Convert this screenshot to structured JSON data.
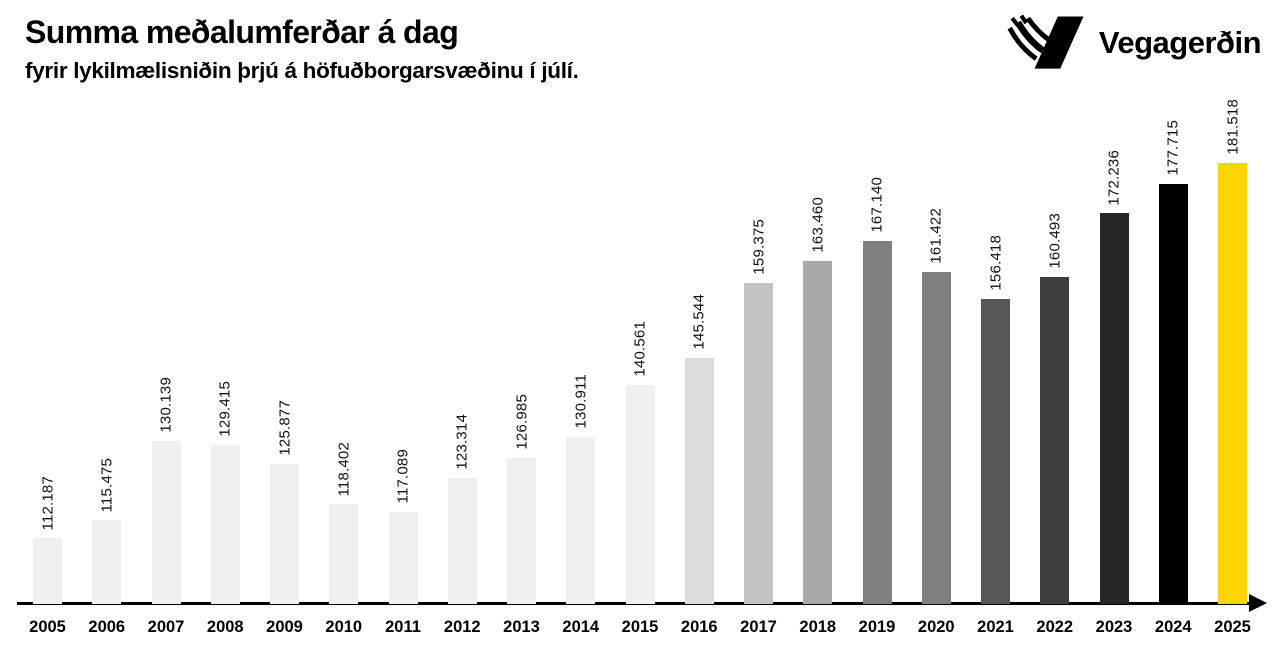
{
  "header": {
    "title": "Summa meðalumferðar á dag",
    "subtitle": "fyrir lykilmælisniðin þrjú á höfuðborgarsvæðinu í júlí."
  },
  "logo": {
    "text": "Vegagerðin",
    "icon": "vegagerdin-tire-track-v-mark",
    "color": "#000000"
  },
  "chart_data": {
    "type": "bar",
    "title": "Summa meðalumferðar á dag",
    "subtitle": "fyrir lykilmælisniðin þrjú á höfuðborgarsvæðinu í júlí.",
    "xlabel": "",
    "ylabel": "",
    "categories": [
      "2005",
      "2006",
      "2007",
      "2008",
      "2009",
      "2010",
      "2011",
      "2012",
      "2013",
      "2014",
      "2015",
      "2016",
      "2017",
      "2018",
      "2019",
      "2020",
      "2021",
      "2022",
      "2023",
      "2024",
      "2025"
    ],
    "values": [
      112187,
      115475,
      130139,
      129415,
      125877,
      118402,
      117089,
      123314,
      126985,
      130911,
      140561,
      145544,
      159375,
      163460,
      167140,
      161422,
      156418,
      160493,
      172236,
      177715,
      181518
    ],
    "value_labels": [
      "112.187",
      "115.475",
      "130.139",
      "129.415",
      "125.877",
      "118.402",
      "117.089",
      "123.314",
      "126.985",
      "130.911",
      "140.561",
      "145.544",
      "159.375",
      "163.460",
      "167.140",
      "161.422",
      "156.418",
      "160.493",
      "172.236",
      "177.715",
      "181.518"
    ],
    "bar_colors": [
      "#f0f0f0",
      "#f0f0f0",
      "#f0f0f0",
      "#f0f0f0",
      "#f0f0f0",
      "#f0f0f0",
      "#f0f0f0",
      "#f0f0f0",
      "#f0f0f0",
      "#f0f0f0",
      "#f0f0f0",
      "#dcdcdc",
      "#c3c3c3",
      "#a9a9a9",
      "#7f7f7f",
      "#7f7f7f",
      "#575757",
      "#3e3e3e",
      "#262626",
      "#000000",
      "#ffd500"
    ],
    "highlight_category": "2025",
    "highlight_color": "#ffd500",
    "value_label_rotation_deg": 90,
    "ylim": [
      100000,
      181518
    ],
    "grid": false,
    "legend": false,
    "y_axis_visible": false,
    "x_axis": {
      "visible": true,
      "arrow": "right",
      "color": "#000000"
    }
  }
}
